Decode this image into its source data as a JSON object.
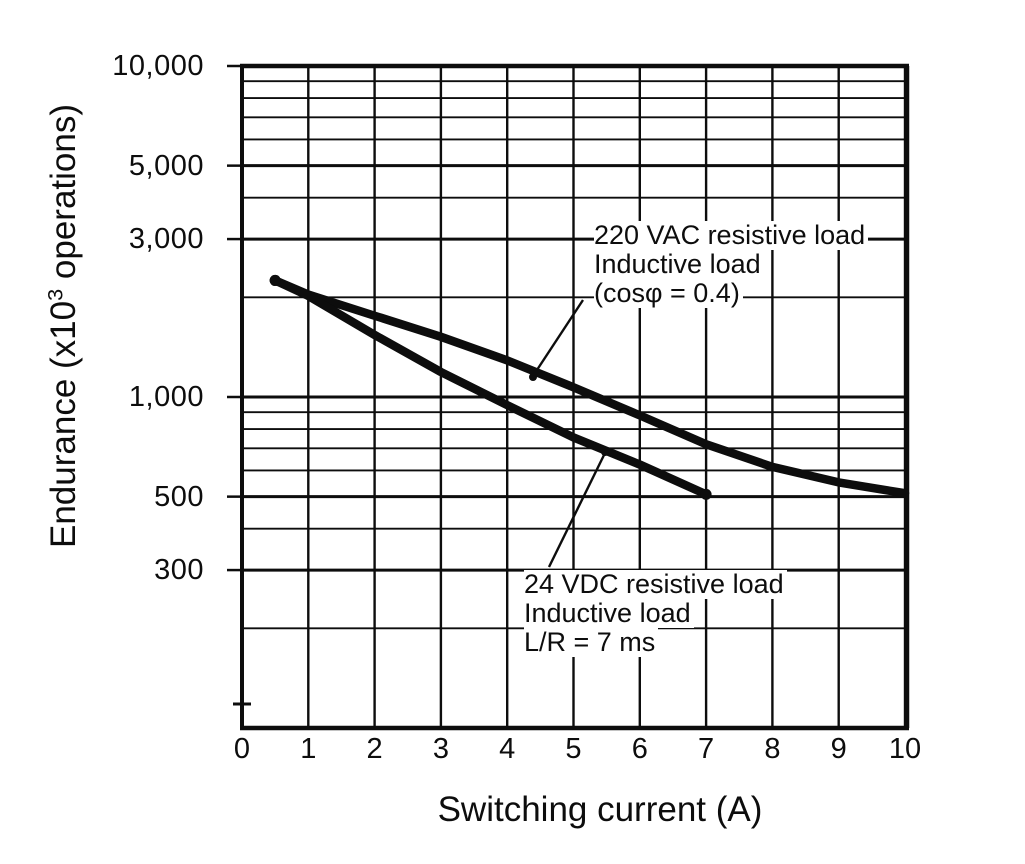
{
  "page": {
    "background": "#ffffff",
    "ink": "#0d0d0d"
  },
  "chart_data": {
    "type": "line",
    "title": "",
    "xlabel": "Switching current (A)",
    "ylabel": "Endurance (x10³ operations)",
    "ylabel_parts": {
      "pre": "Endurance (x10",
      "sup": "3",
      "post": " operations)"
    },
    "grid": true,
    "legend_position": "in-plot annotations with leader lines",
    "x_axis": {
      "scale": "linear",
      "min": 0,
      "max": 10,
      "tick_values": [
        0,
        1,
        2,
        3,
        4,
        5,
        6,
        7,
        8,
        9,
        10
      ],
      "tick_labels": [
        "0",
        "1",
        "2",
        "3",
        "4",
        "5",
        "6",
        "7",
        "8",
        "9",
        "10"
      ],
      "gridline_values": [
        1,
        2,
        3,
        4,
        5,
        6,
        7,
        8,
        9,
        10
      ]
    },
    "y_axis": {
      "scale": "log",
      "min": 100,
      "max": 10000,
      "labeled_ticks": [
        {
          "value": 10000,
          "label": "10,000"
        },
        {
          "value": 5000,
          "label": "5,000"
        },
        {
          "value": 3000,
          "label": "3,000"
        },
        {
          "value": 1000,
          "label": "1,000"
        },
        {
          "value": 500,
          "label": "500"
        },
        {
          "value": 300,
          "label": "300"
        }
      ],
      "gridline_values": [
        10000,
        9000,
        8000,
        7000,
        6000,
        5000,
        4000,
        3000,
        2000,
        1000,
        900,
        800,
        700,
        600,
        500,
        400,
        300,
        200,
        100
      ]
    },
    "series": [
      {
        "name": "220 VAC resistive load / Inductive load (cosφ = 0.4)",
        "x": [
          0.5,
          1,
          2,
          3,
          4,
          5,
          6,
          7,
          8,
          9,
          10
        ],
        "y": [
          2250,
          2040,
          1760,
          1520,
          1290,
          1070,
          880,
          720,
          615,
          552,
          512
        ]
      },
      {
        "name": "24 VDC resistive load / Inductive load L/R = 7 ms",
        "x": [
          0.5,
          1,
          2,
          3,
          4,
          5,
          6,
          7
        ],
        "y": [
          2250,
          2020,
          1540,
          1190,
          945,
          755,
          625,
          508
        ]
      }
    ],
    "annotations": [
      {
        "series": "220 VAC",
        "lines": [
          "220 VAC resistive load",
          "Inductive load",
          "(cosφ = 0.4)"
        ]
      },
      {
        "series": "24 VDC",
        "lines": [
          "24 VDC resistive load",
          "Inductive load",
          "L/R = 7 ms"
        ]
      }
    ]
  }
}
